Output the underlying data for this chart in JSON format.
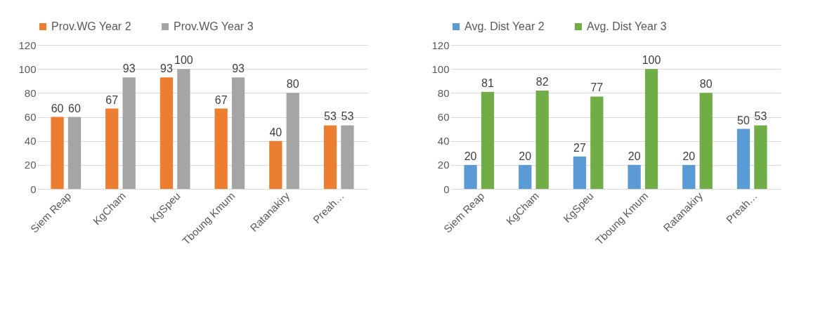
{
  "chart_data": [
    {
      "type": "bar",
      "categories": [
        "Siem Reap",
        "KgCham",
        "KgSpeu",
        "Tboung Kmum",
        "Ratanakiry",
        "Preah…"
      ],
      "series": [
        {
          "name": "Prov.WG Year 2",
          "color": "#ed7d31",
          "values": [
            60,
            67,
            93,
            67,
            40,
            53
          ]
        },
        {
          "name": "Prov.WG Year 3",
          "color": "#a5a5a5",
          "values": [
            60,
            93,
            100,
            93,
            80,
            53
          ]
        }
      ],
      "ylim": [
        0,
        120
      ],
      "yticks": [
        0,
        20,
        40,
        60,
        80,
        100,
        120
      ],
      "grid": "y",
      "legend": "top",
      "data_labels": true
    },
    {
      "type": "bar",
      "categories": [
        "Siem Reap",
        "KgCham",
        "KgSpeu",
        "Tboung Kmum",
        "Ratanakiry",
        "Preah…"
      ],
      "series": [
        {
          "name": "Avg. Dist Year 2",
          "color": "#5b9bd5",
          "values": [
            20,
            20,
            27,
            20,
            20,
            50
          ]
        },
        {
          "name": "Avg. Dist Year 3",
          "color": "#70ad47",
          "values": [
            81,
            82,
            77,
            100,
            80,
            53
          ]
        }
      ],
      "ylim": [
        0,
        120
      ],
      "yticks": [
        0,
        20,
        40,
        60,
        80,
        100,
        120
      ],
      "grid": "y",
      "legend": "top",
      "data_labels": true
    }
  ]
}
